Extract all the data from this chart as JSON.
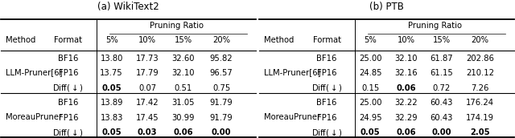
{
  "title_a": "(a) WikiText2",
  "title_b": "(b) PTB",
  "header_row": [
    "Method",
    "Format",
    "5%",
    "10%",
    "15%",
    "20%"
  ],
  "pruning_ratio_label": "Pruning Ratio",
  "table_a": {
    "LLM-Pruner[6]": {
      "BF16": [
        "13.80",
        "17.73",
        "32.60",
        "95.82"
      ],
      "FP16": [
        "13.75",
        "17.79",
        "32.10",
        "96.57"
      ],
      "Diff": [
        "0.05",
        "0.07",
        "0.51",
        "0.75"
      ],
      "diff_bold": [
        true,
        false,
        false,
        false
      ]
    },
    "MoreauPruner": {
      "BF16": [
        "13.89",
        "17.42",
        "31.05",
        "91.79"
      ],
      "FP16": [
        "13.83",
        "17.45",
        "30.99",
        "91.79"
      ],
      "Diff": [
        "0.05",
        "0.03",
        "0.06",
        "0.00"
      ],
      "diff_bold": [
        true,
        true,
        true,
        true
      ]
    }
  },
  "table_b": {
    "LLM-Pruner[6]": {
      "BF16": [
        "25.00",
        "32.10",
        "61.87",
        "202.86"
      ],
      "FP16": [
        "24.85",
        "32.16",
        "61.15",
        "210.12"
      ],
      "Diff": [
        "0.15",
        "0.06",
        "0.72",
        "7.26"
      ],
      "diff_bold": [
        false,
        true,
        false,
        false
      ]
    },
    "MoreauPruner": {
      "BF16": [
        "25.00",
        "32.22",
        "60.43",
        "176.24"
      ],
      "FP16": [
        "24.95",
        "32.29",
        "60.43",
        "174.19"
      ],
      "Diff": [
        "0.05",
        "0.06",
        "0.00",
        "2.05"
      ],
      "diff_bold": [
        true,
        true,
        true,
        true
      ]
    }
  },
  "bg_color": "white",
  "font_size": 7.2,
  "title_font_size": 8.5
}
